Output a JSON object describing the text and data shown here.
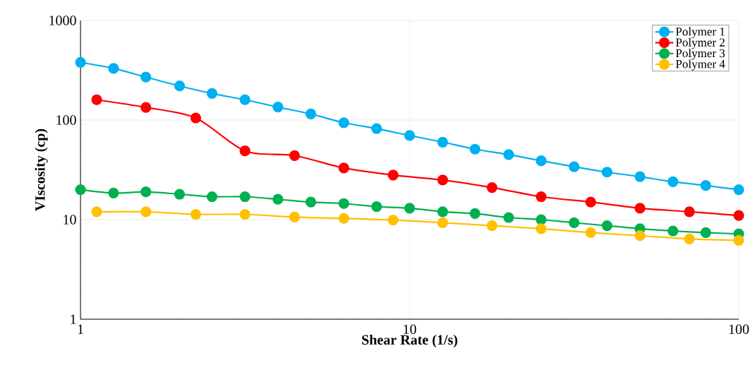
{
  "chart_data": {
    "type": "line",
    "xlabel": "Shear Rate (1/s)",
    "ylabel": "VIscosity (cp)",
    "log": "xy",
    "xlim": [
      1,
      100
    ],
    "xticks": [
      1,
      10,
      100
    ],
    "ylim": [
      1,
      1000
    ],
    "yticks": [
      1,
      10,
      100,
      1000
    ],
    "grid": true,
    "legend": "top right",
    "marker": "circle",
    "line_style": "solid",
    "series": [
      {
        "name": "Polymer 1",
        "color": "#00b0f0",
        "x": [
          1,
          1.26,
          1.58,
          2,
          2.51,
          3.16,
          3.98,
          5.01,
          6.31,
          7.94,
          10,
          12.6,
          15.8,
          20,
          25.1,
          31.6,
          39.8,
          50.1,
          63.1,
          79.4,
          100
        ],
        "values": [
          380,
          330,
          270,
          220,
          185,
          160,
          135,
          115,
          94,
          82,
          70,
          60,
          51,
          45,
          39,
          34,
          30,
          27,
          24,
          22,
          20
        ]
      },
      {
        "name": "Polymer 2",
        "color": "#ff0000",
        "x": [
          1.12,
          1.58,
          2.24,
          3.16,
          4.47,
          6.31,
          8.91,
          12.6,
          17.8,
          25.1,
          35.5,
          50.1,
          70.8,
          100
        ],
        "values": [
          160,
          134,
          105,
          49,
          44,
          33,
          28,
          25,
          21,
          17,
          15,
          13,
          12,
          11
        ]
      },
      {
        "name": "Polymer 3",
        "color": "#00b050",
        "x": [
          1,
          1.26,
          1.58,
          2,
          2.51,
          3.16,
          3.98,
          5.01,
          6.31,
          7.94,
          10,
          12.6,
          15.8,
          20,
          25.1,
          31.6,
          39.8,
          50.1,
          63.1,
          79.4,
          100
        ],
        "values": [
          20,
          18.5,
          19,
          18,
          17,
          17,
          16,
          15,
          14.5,
          13.5,
          13,
          12,
          11.5,
          10.5,
          10,
          9.3,
          8.7,
          8.1,
          7.7,
          7.4,
          7.2
        ]
      },
      {
        "name": "Polymer 4",
        "color": "#ffc000",
        "x": [
          1.12,
          1.58,
          2.24,
          3.16,
          4.47,
          6.31,
          8.91,
          12.6,
          17.8,
          25.1,
          35.5,
          50.1,
          70.8,
          100
        ],
        "values": [
          12,
          12,
          11.3,
          11.3,
          10.6,
          10.3,
          9.9,
          9.3,
          8.7,
          8.1,
          7.4,
          6.9,
          6.4,
          6.2
        ]
      }
    ]
  }
}
